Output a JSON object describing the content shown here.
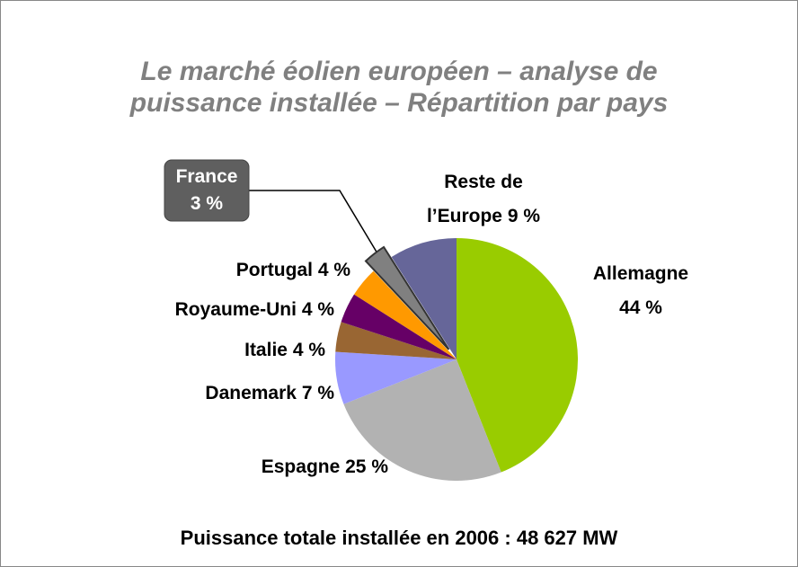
{
  "chart_data": {
    "type": "pie",
    "title": [
      "Le marché éolien européen – analyse de",
      "puissance installée – Répartition par pays"
    ],
    "categories": [
      "Allemagne",
      "Espagne",
      "Danemark",
      "Italie",
      "Royaume-Uni",
      "Portugal",
      "France",
      "Reste de l’Europe"
    ],
    "values": [
      44,
      25,
      7,
      4,
      4,
      4,
      3,
      9
    ],
    "value_labels": [
      "44 %",
      "25 %",
      "7 %",
      "4 %",
      "4 %",
      "4 %",
      "3 %",
      "9 %"
    ],
    "colors": [
      "#99cc00",
      "#b2b2b2",
      "#9999ff",
      "#996633",
      "#660066",
      "#ff9900",
      "#808080",
      "#666699"
    ],
    "exploded": "France",
    "footer": "Puissance totale installée en 2006 : 48 627 MW"
  }
}
